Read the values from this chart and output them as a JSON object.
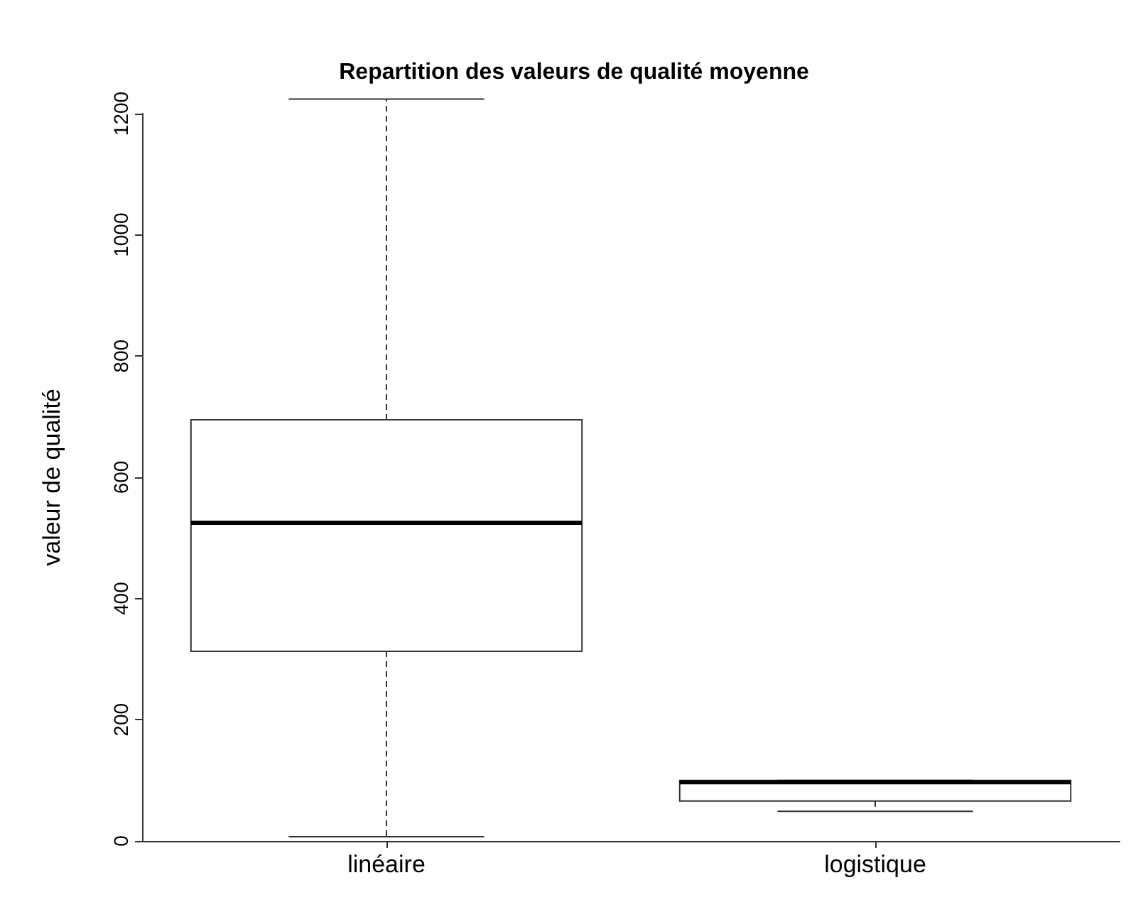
{
  "chart_data": {
    "type": "box",
    "title": "Repartition des valeurs de qualité moyenne",
    "ylabel": "valeur de qualité",
    "categories": [
      "linéaire",
      "logistique"
    ],
    "boxes": [
      {
        "low": 7,
        "q1": 313,
        "median": 525,
        "q3": 695,
        "high": 1224
      },
      {
        "low": 49,
        "q1": 66,
        "median": 97,
        "q3": 100,
        "high": 100
      }
    ],
    "color": "#333333",
    "ylim": [
      0,
      1200
    ],
    "yticks": [
      0,
      200,
      400,
      600,
      800,
      1000,
      1200
    ],
    "grid": false
  }
}
